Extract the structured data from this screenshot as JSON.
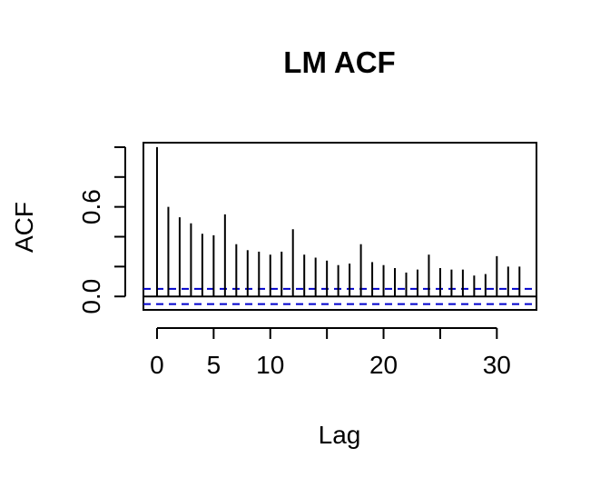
{
  "chart_data": {
    "type": "bar",
    "title": "LM ACF",
    "xlabel": "Lag",
    "ylabel": "ACF",
    "x": [
      0,
      1,
      2,
      3,
      4,
      5,
      6,
      7,
      8,
      9,
      10,
      11,
      12,
      13,
      14,
      15,
      16,
      17,
      18,
      19,
      20,
      21,
      22,
      23,
      24,
      25,
      26,
      27,
      28,
      29,
      30,
      31,
      32
    ],
    "values": [
      1.0,
      0.6,
      0.53,
      0.49,
      0.42,
      0.41,
      0.55,
      0.35,
      0.31,
      0.3,
      0.28,
      0.3,
      0.45,
      0.28,
      0.26,
      0.24,
      0.21,
      0.22,
      0.35,
      0.23,
      0.21,
      0.19,
      0.16,
      0.18,
      0.28,
      0.19,
      0.18,
      0.18,
      0.14,
      0.15,
      0.27,
      0.2,
      0.2
    ],
    "ci": 0.051,
    "xlim": [
      -1.2,
      33.5
    ],
    "ylim": [
      -0.09,
      1.03
    ],
    "xticks": [
      0,
      5,
      10,
      20,
      30
    ],
    "yticks_labeled": [
      0.0,
      0.6
    ],
    "yticks_all": [
      0.0,
      0.2,
      0.4,
      0.6,
      0.8,
      1.0
    ],
    "ci_color": "#0000cc",
    "bar_color": "#000000",
    "grid": false,
    "legend": "none"
  }
}
